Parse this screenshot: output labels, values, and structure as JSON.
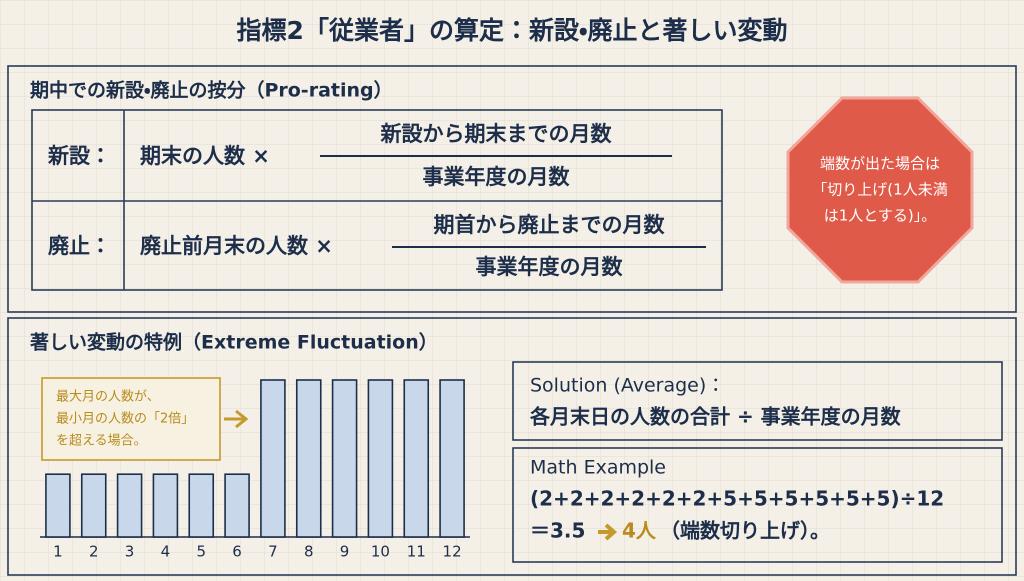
{
  "title": "指標2「従業者」の算定：新設・廃止と著しい変動",
  "pro_rating": {
    "heading": "期中での新設・廃止の按分（Pro-rating）",
    "rows": [
      {
        "label": "新設：",
        "base": "期末の人数 ×",
        "numerator": "新設から期末までの月数",
        "denominator": "事業年度の月数"
      },
      {
        "label": "廃止：",
        "base": "廃止前月末の人数 ×",
        "numerator": "期首から廃止までの月数",
        "denominator": "事業年度の月数"
      }
    ]
  },
  "rounding_note": [
    "端数が出た場合は",
    "「切り上げ(1人未満",
    "は1人とする)」。"
  ],
  "fluctuation": {
    "heading": "著しい変動の特例（Extreme Fluctuation）",
    "annotation": [
      "最大月の人数が、",
      "最小月の人数の「2倍」",
      "を超える場合。"
    ]
  },
  "chart_data": {
    "type": "bar",
    "categories": [
      "1",
      "2",
      "3",
      "4",
      "5",
      "6",
      "7",
      "8",
      "9",
      "10",
      "11",
      "12"
    ],
    "values": [
      2,
      2,
      2,
      2,
      2,
      2,
      5,
      5,
      5,
      5,
      5,
      5
    ],
    "color": "#c8d8ea"
  },
  "solution": {
    "label": "Solution (Average)：",
    "formula": "各月末日の人数の合計 ÷ 事業年度の月数"
  },
  "math_example": {
    "label": "Math Example",
    "expression": "(2+2+2+2+2+2+5+5+5+5+5+5)÷12",
    "result": "＝3.5",
    "rounded": "4人",
    "note": "（端数切り上げ）。"
  }
}
